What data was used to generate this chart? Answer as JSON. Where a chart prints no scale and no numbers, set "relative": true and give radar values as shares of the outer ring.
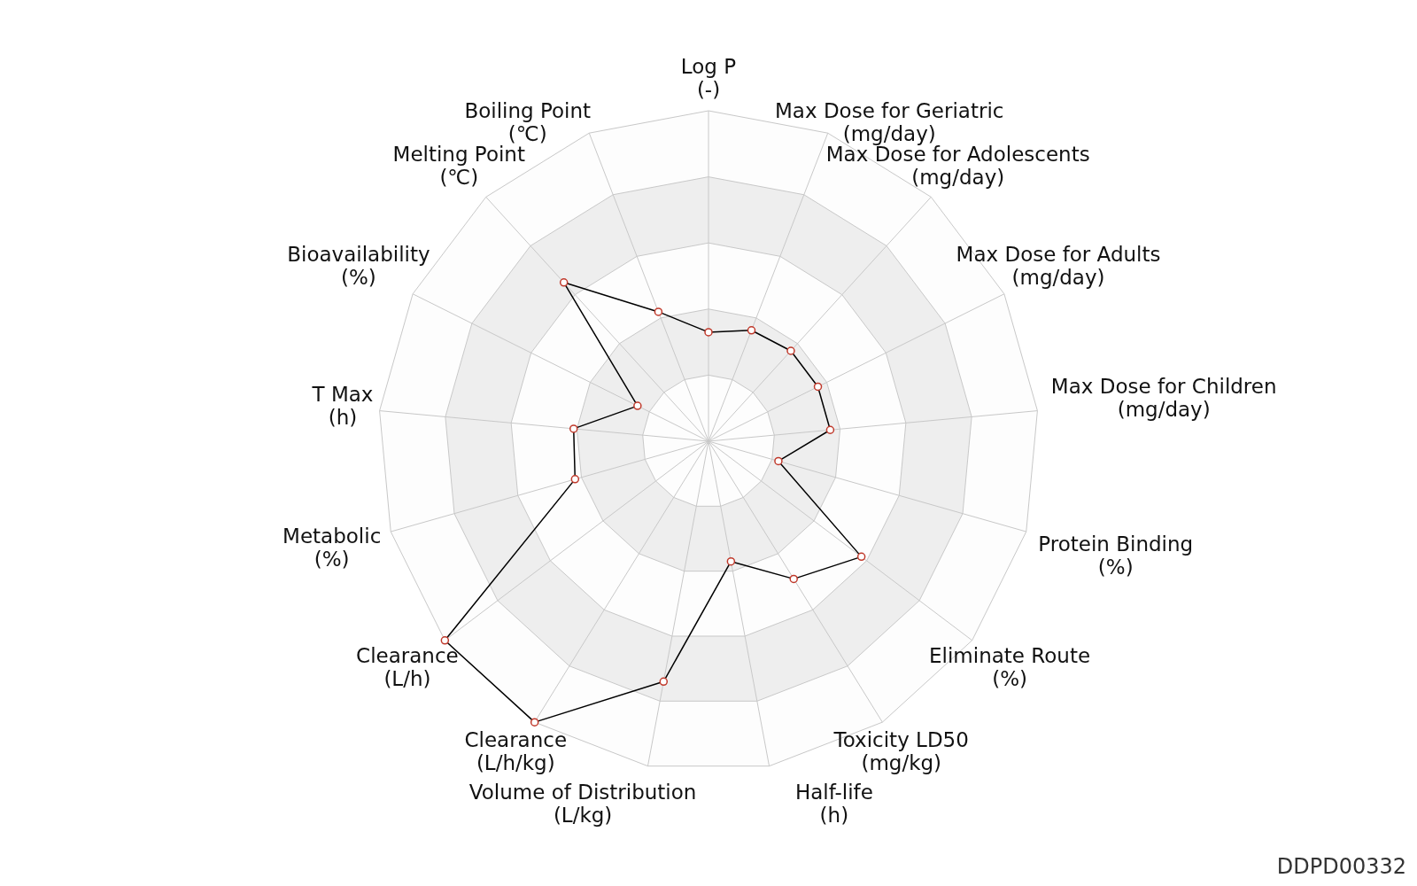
{
  "chart_data": {
    "type": "radar",
    "relative": true,
    "grid": true,
    "marker": "circle",
    "legend": false,
    "categories": [
      "Log P\n(-)",
      "Max Dose for Geriatric\n(mg/day)",
      "Max Dose for Adolescents\n(mg/day)",
      "Max Dose for Adults\n(mg/day)",
      "Max Dose for Children\n(mg/day)",
      "Protein Binding\n(%)",
      "Eliminate Route\n(%)",
      "Toxicity LD50\n(mg/kg)",
      "Half-life\n(h)",
      "Volume of Distribution\n(L/kg)",
      "Clearance\n(L/h/kg)",
      "Clearance\n(L/h)",
      "Metabolic\n(%)",
      "T Max\n(h)",
      "Bioavailability\n(%)",
      "Melting Point\n(℃)",
      "Boiling Point\n(℃)"
    ],
    "series": [
      {
        "color": "#000000",
        "values": [
          0.33,
          0.36,
          0.37,
          0.37,
          0.37,
          0.22,
          0.58,
          0.49,
          0.37,
          0.74,
          1.0,
          1.0,
          0.42,
          0.41,
          0.24,
          0.65,
          0.42
        ]
      }
    ],
    "annotations": [
      "DDPD00332"
    ]
  }
}
